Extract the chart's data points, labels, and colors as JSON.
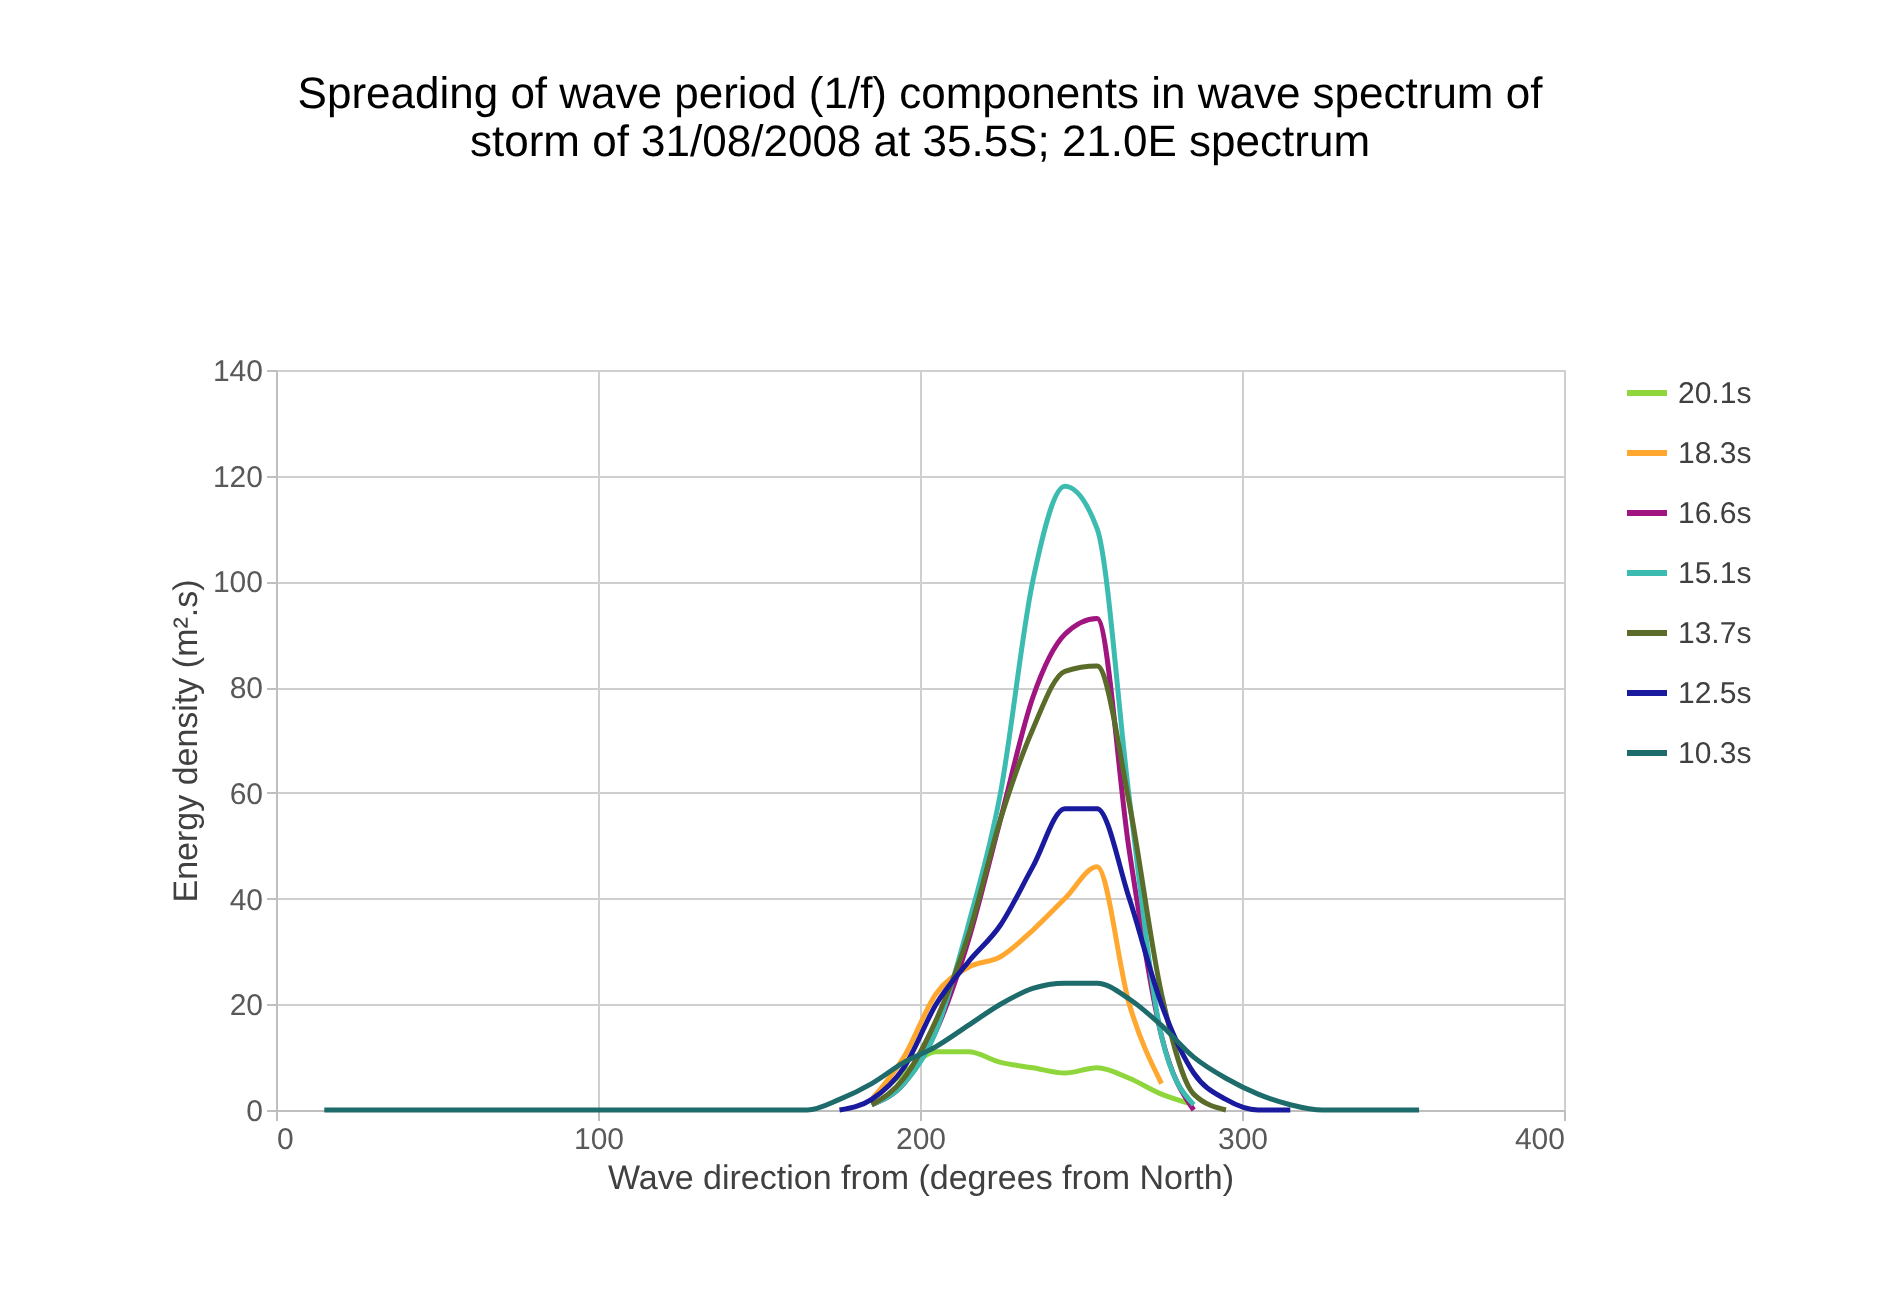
{
  "chart_data": {
    "type": "line",
    "title": [
      "Spreading of wave period (1/f) components in wave spectrum of",
      "storm of 31/08/2008 at 35.5S; 21.0E spectrum"
    ],
    "xlabel": "Wave direction from (degrees from North)",
    "ylabel": "Energy density (m².s)",
    "x": [
      15,
      25,
      35,
      45,
      55,
      65,
      75,
      85,
      95,
      105,
      115,
      125,
      135,
      145,
      155,
      165,
      175,
      185,
      195,
      205,
      215,
      225,
      235,
      245,
      255,
      265,
      275,
      285,
      295,
      305,
      315,
      325,
      335,
      345,
      355
    ],
    "series": [
      {
        "name": "20.1s",
        "color": "#8fd63c",
        "values": [
          null,
          null,
          null,
          null,
          null,
          null,
          null,
          null,
          null,
          null,
          null,
          null,
          null,
          null,
          null,
          null,
          null,
          2,
          7,
          11,
          11,
          9,
          8,
          7,
          8,
          6,
          3,
          1,
          null,
          null,
          null,
          null,
          null,
          null,
          null
        ]
      },
      {
        "name": "18.3s",
        "color": "#ffa72e",
        "values": [
          null,
          null,
          null,
          null,
          null,
          null,
          null,
          null,
          null,
          null,
          null,
          null,
          null,
          null,
          null,
          null,
          null,
          2,
          10,
          22,
          27,
          29,
          34,
          40,
          46,
          20,
          5,
          null,
          null,
          null,
          null,
          null,
          null,
          null,
          null
        ]
      },
      {
        "name": "16.6s",
        "color": "#a0157f",
        "values": [
          null,
          null,
          null,
          null,
          null,
          null,
          null,
          null,
          null,
          null,
          null,
          null,
          null,
          null,
          null,
          null,
          null,
          1,
          5,
          15,
          32,
          55,
          78,
          90,
          93,
          49,
          14,
          0,
          null,
          null,
          null,
          null,
          null,
          null,
          null
        ]
      },
      {
        "name": "15.1s",
        "color": "#3cbcb0",
        "values": [
          null,
          null,
          null,
          null,
          null,
          null,
          null,
          null,
          null,
          null,
          null,
          null,
          null,
          null,
          null,
          null,
          null,
          1,
          5,
          15,
          35,
          60,
          100,
          118,
          110,
          59,
          14,
          1,
          null,
          null,
          null,
          null,
          null,
          null,
          null
        ]
      },
      {
        "name": "13.7s",
        "color": "#5a6b2a",
        "values": [
          null,
          null,
          null,
          null,
          null,
          null,
          null,
          null,
          null,
          null,
          null,
          null,
          null,
          null,
          null,
          null,
          null,
          1,
          6,
          17,
          33,
          55,
          72,
          83,
          84,
          58,
          22,
          3,
          0,
          null,
          null,
          null,
          null,
          null,
          null
        ]
      },
      {
        "name": "12.5s",
        "color": "#1a1a9e",
        "values": [
          null,
          null,
          null,
          null,
          null,
          null,
          null,
          null,
          null,
          null,
          null,
          null,
          null,
          null,
          null,
          null,
          0,
          2,
          8,
          20,
          28,
          35,
          46,
          57,
          57,
          40,
          20,
          7,
          2,
          0,
          0,
          null,
          null,
          null,
          null
        ]
      },
      {
        "name": "10.3s",
        "color": "#1e6b6b",
        "values": [
          0,
          0,
          0,
          0,
          0,
          0,
          0,
          0,
          0,
          0,
          0,
          0,
          0,
          0,
          0,
          0,
          2,
          5,
          9,
          12,
          16,
          20,
          23,
          24,
          24,
          21,
          16,
          10,
          6,
          3,
          1,
          0,
          0,
          0,
          0
        ]
      }
    ],
    "xlim": [
      0,
      400
    ],
    "xticks": [
      0,
      100,
      200,
      300,
      400
    ],
    "ylim": [
      0,
      140
    ],
    "yticks": [
      0,
      20,
      40,
      60,
      80,
      100,
      120,
      140
    ],
    "grid": true,
    "legend": "right",
    "marker": "none",
    "line_style": "solid"
  }
}
